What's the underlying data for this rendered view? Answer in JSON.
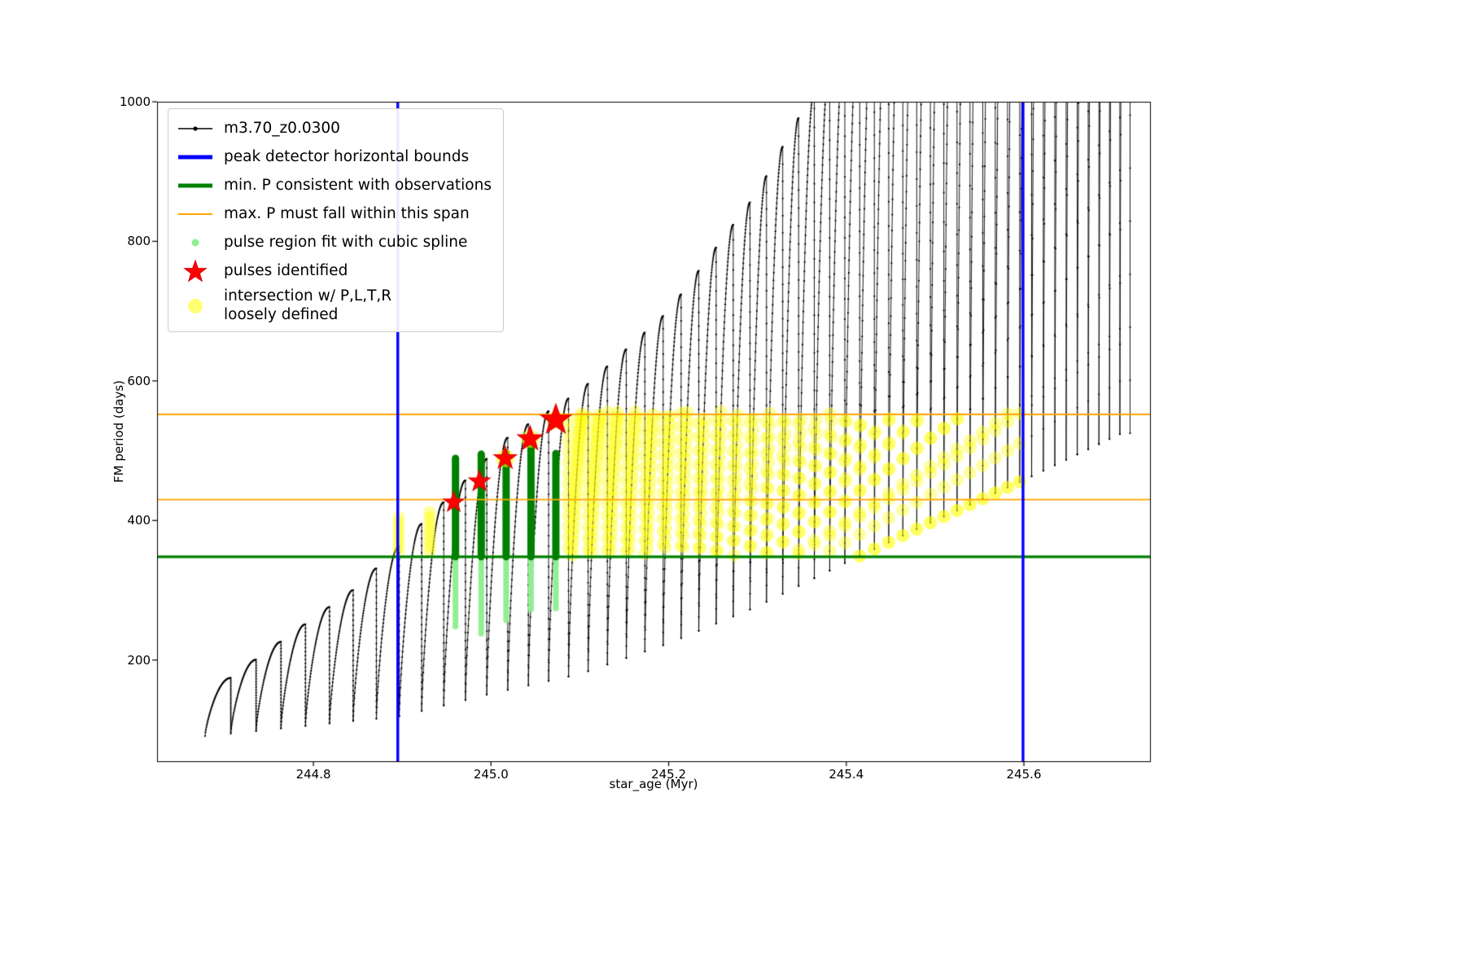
{
  "figure": {
    "background": "#ffffff"
  },
  "axes": {
    "xlabel": "star_age (Myr)",
    "ylabel": "FM period (days)",
    "x_tick_labels": [
      "244.8",
      "245.0",
      "245.2",
      "245.4",
      "245.6"
    ],
    "x_tick_values": [
      244.8,
      245.0,
      245.2,
      245.4,
      245.6
    ],
    "y_tick_labels": [
      "200",
      "400",
      "600",
      "800",
      "1000"
    ],
    "y_tick_values": [
      200,
      400,
      600,
      800,
      1000
    ]
  },
  "legend": {
    "entries": [
      {
        "label": "m3.70_z0.0300",
        "symbol": "line-dot",
        "color": "#000000",
        "icon": "series-line-icon"
      },
      {
        "label": "peak detector horizontal bounds",
        "symbol": "thick-line",
        "color": "#0000ff",
        "icon": "peak-bounds-line-icon"
      },
      {
        "label": "min. P consistent with observations",
        "symbol": "thick-line",
        "color": "#008000",
        "icon": "min-p-line-icon"
      },
      {
        "label": "max. P must fall within this span",
        "symbol": "line",
        "color": "#ffa500",
        "icon": "max-p-line-icon"
      },
      {
        "label": "pulse region fit with cubic spline",
        "symbol": "dot",
        "color": "#90ee90",
        "icon": "spline-dot-icon"
      },
      {
        "label": "pulses identified",
        "symbol": "star",
        "color": "#ff0000",
        "icon": "pulse-star-icon"
      },
      {
        "label": "intersection w/ P,L,T,R\nloosely defined",
        "symbol": "big-dot",
        "color": "rgba(255,255,0,0.55)",
        "icon": "intersection-dot-icon"
      }
    ]
  },
  "chart_data": {
    "type": "line",
    "title": "",
    "xlabel": "star_age (Myr)",
    "ylabel": "FM period (days)",
    "xlim": [
      244.624,
      245.742
    ],
    "ylim": [
      55,
      1000
    ],
    "series_name": "m3.70_z0.0300",
    "colors": {
      "series": "#000000",
      "peak_detector_bounds": "#0000ff",
      "min_P_line": "#008000",
      "max_P_span": "#ffa500",
      "spline_fit": "#90ee90",
      "pulse_fit_bar": "#008000",
      "pulses": "#ff0000",
      "intersection": "#ffff00"
    },
    "peak_detector_bounds_x": [
      244.895,
      245.599
    ],
    "min_P_line_y": 348,
    "max_P_span_y": [
      430,
      552
    ],
    "pulse_track": {
      "x_start": 244.678,
      "x_end": 245.71,
      "spacing_start": 0.029,
      "spacing_slope": -0.017,
      "rise_shape_exponent": 0.75,
      "peak_envelope": [
        [
          244.7,
          168
        ],
        [
          244.85,
          305
        ],
        [
          244.95,
          430
        ],
        [
          245.02,
          520
        ],
        [
          245.1,
          585
        ],
        [
          245.2,
          700
        ],
        [
          245.3,
          870
        ],
        [
          245.4,
          1100
        ],
        [
          245.55,
          1650
        ],
        [
          245.71,
          2500
        ]
      ],
      "base_envelope": [
        [
          244.67,
          90
        ],
        [
          244.9,
          120
        ],
        [
          245.0,
          152
        ],
        [
          245.1,
          180
        ],
        [
          245.2,
          224
        ],
        [
          245.3,
          277
        ],
        [
          245.4,
          340
        ],
        [
          245.5,
          400
        ],
        [
          245.6,
          458
        ],
        [
          245.71,
          525
        ]
      ]
    },
    "pulse_regions_fit": [
      {
        "x": 244.96,
        "spline_y_min": 248,
        "fit_y_top": 489
      },
      {
        "x": 244.989,
        "spline_y_min": 238,
        "fit_y_top": 495
      },
      {
        "x": 245.017,
        "spline_y_min": 257,
        "fit_y_top": 497
      },
      {
        "x": 245.045,
        "spline_y_min": 273,
        "fit_y_top": 505
      },
      {
        "x": 245.073,
        "spline_y_min": 274,
        "fit_y_top": 496
      }
    ],
    "pulses_identified": [
      {
        "x": 244.958,
        "y": 426
      },
      {
        "x": 244.987,
        "y": 456
      },
      {
        "x": 245.016,
        "y": 489
      },
      {
        "x": 245.044,
        "y": 517
      },
      {
        "x": 245.073,
        "y": 544
      }
    ],
    "intersection_region": {
      "x_range": [
        245.085,
        245.605
      ],
      "y_range": [
        349,
        556
      ]
    },
    "extra_intersection_clusters": [
      {
        "x": 244.896,
        "y_min": 356,
        "y_max": 408
      },
      {
        "x": 244.931,
        "y_min": 356,
        "y_max": 412
      }
    ]
  }
}
